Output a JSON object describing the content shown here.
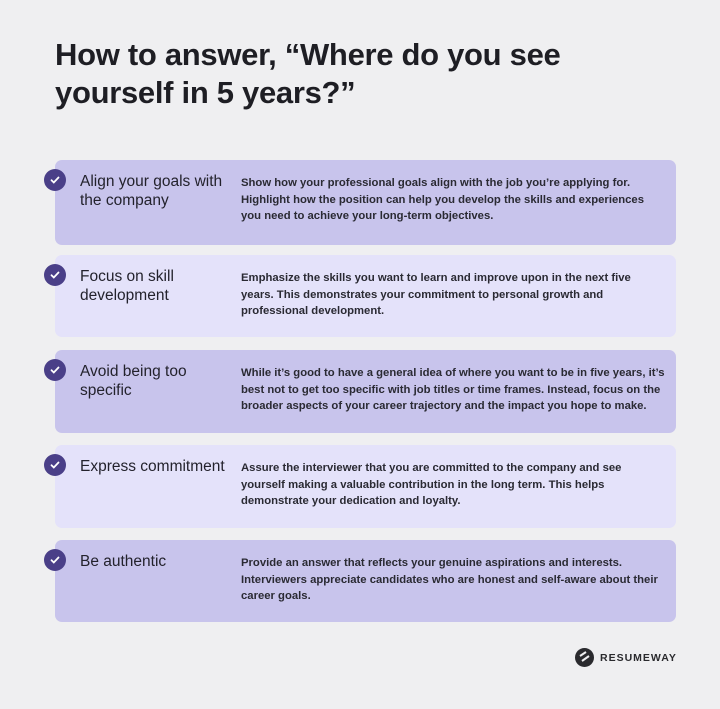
{
  "title": "How to answer, “Where do you see yourself in 5 years?”",
  "tips": [
    {
      "heading": "Align your goals with the company",
      "text": "Show how your professional goals align with the job you’re applying for. Highlight how the position can help you develop the skills and experiences you need to achieve your long-term objectives."
    },
    {
      "heading": "Focus on skill development",
      "text": "Emphasize the skills you want to learn and improve upon in the next five years. This demonstrates your commitment to personal growth and professional development."
    },
    {
      "heading": "Avoid being too specific",
      "text": "While it’s good to have a general idea of where you want to be in five years, it’s best not to get too specific with job titles or time frames. Instead, focus on the broader aspects of your career trajectory and the impact you hope to make."
    },
    {
      "heading": "Express commitment",
      "text": "Assure the interviewer that you are committed to the company and see yourself making a valuable contribution in the long term. This helps demonstrate your dedication and loyalty."
    },
    {
      "heading": "Be authentic",
      "text": "Provide an answer that reflects your genuine aspirations and interests. Interviewers appreciate candidates who are honest and self-aware about their career goals."
    }
  ],
  "icons": {
    "bullet": "check-circle-icon",
    "logo": "resumeway-logo-icon"
  },
  "colors": {
    "card_dark": "#c8c4ec",
    "card_light": "#e4e2fa",
    "check": "#4a3f88",
    "background": "#efeff1"
  },
  "brand": "RESUMEWAY"
}
